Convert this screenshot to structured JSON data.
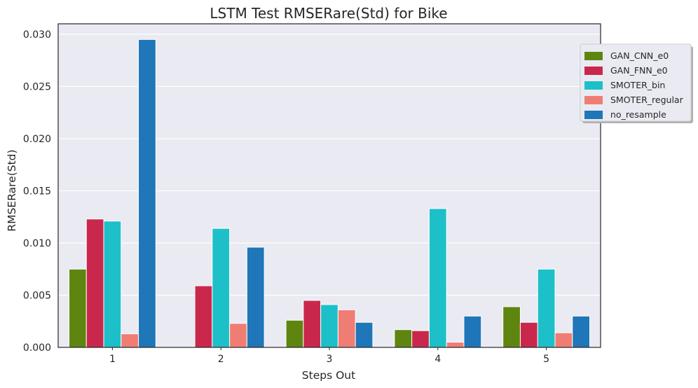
{
  "chart_data": {
    "type": "bar",
    "title": "LSTM Test RMSERare(Std) for Bike",
    "xlabel": "Steps Out",
    "ylabel": "RMSERare(Std)",
    "categories": [
      "1",
      "2",
      "3",
      "4",
      "5"
    ],
    "ylim": [
      0,
      0.031
    ],
    "yticks": [
      "0.000",
      "0.005",
      "0.010",
      "0.015",
      "0.020",
      "0.025",
      "0.030"
    ],
    "grid": true,
    "legend_position": "upper-right, outside plot",
    "series": [
      {
        "name": "GAN_CNN_e0",
        "color": "#5f8511",
        "values": [
          0.0075,
          0.0,
          0.0026,
          0.0017,
          0.0039
        ]
      },
      {
        "name": "GAN_FNN_e0",
        "color": "#c9284c",
        "values": [
          0.0123,
          0.0059,
          0.0045,
          0.0016,
          0.0024
        ]
      },
      {
        "name": "SMOTER_bin",
        "color": "#1dc0c8",
        "values": [
          0.0121,
          0.0114,
          0.0041,
          0.0133,
          0.0075
        ]
      },
      {
        "name": "SMOTER_regular",
        "color": "#f07d74",
        "values": [
          0.0013,
          0.0023,
          0.0036,
          0.0005,
          0.0014
        ]
      },
      {
        "name": "no_resample",
        "color": "#1f76b8",
        "values": [
          0.0295,
          0.0096,
          0.0024,
          0.003,
          0.003
        ]
      }
    ]
  }
}
